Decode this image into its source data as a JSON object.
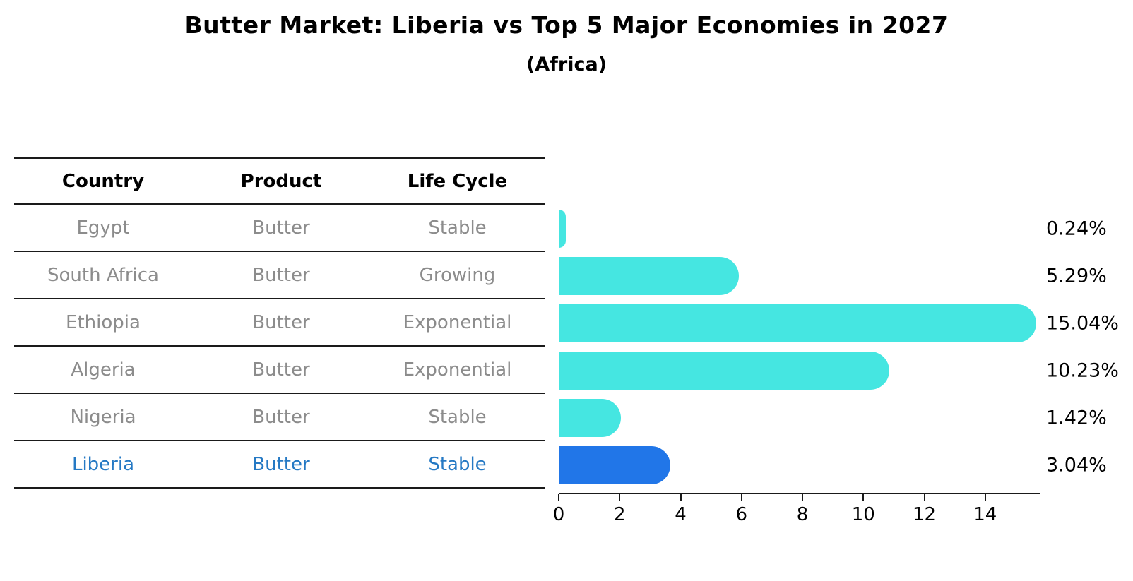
{
  "title": "Butter Market: Liberia vs Top 5 Major Economies in 2027",
  "subtitle": "(Africa)",
  "table": {
    "headers": [
      "Country",
      "Product",
      "Life Cycle"
    ],
    "rows": [
      {
        "country": "Egypt",
        "product": "Butter",
        "life_cycle": "Stable"
      },
      {
        "country": "South Africa",
        "product": "Butter",
        "life_cycle": "Growing"
      },
      {
        "country": "Ethiopia",
        "product": "Butter",
        "life_cycle": "Exponential"
      },
      {
        "country": "Algeria",
        "product": "Butter",
        "life_cycle": "Exponential"
      },
      {
        "country": "Nigeria",
        "product": "Butter",
        "life_cycle": "Stable"
      },
      {
        "country": "Liberia",
        "product": "Butter",
        "life_cycle": "Stable"
      }
    ],
    "highlight_row_index": 5
  },
  "chart_data": {
    "type": "bar",
    "orientation": "horizontal",
    "title": "Butter Market: Liberia vs Top 5 Major Economies in 2027",
    "subtitle": "(Africa)",
    "categories": [
      "Egypt",
      "South Africa",
      "Ethiopia",
      "Algeria",
      "Nigeria",
      "Liberia"
    ],
    "values": [
      0.24,
      5.29,
      15.04,
      10.23,
      1.42,
      3.04
    ],
    "value_labels": [
      "0.24%",
      "5.29%",
      "15.04%",
      "10.23%",
      "1.42%",
      "3.04%"
    ],
    "x_ticks": [
      0,
      2,
      4,
      6,
      8,
      10,
      12,
      14
    ],
    "xlim": [
      0,
      15.79
    ],
    "xlabel": "",
    "ylabel": "",
    "grid": false,
    "legend": false,
    "highlight_index": 5
  },
  "colors": {
    "bar": "#45E6E1",
    "highlight_bar": "#2176E8",
    "highlight_text": "#2579C4",
    "table_text": "#8C8C8C",
    "line": "#1A1A1A"
  }
}
